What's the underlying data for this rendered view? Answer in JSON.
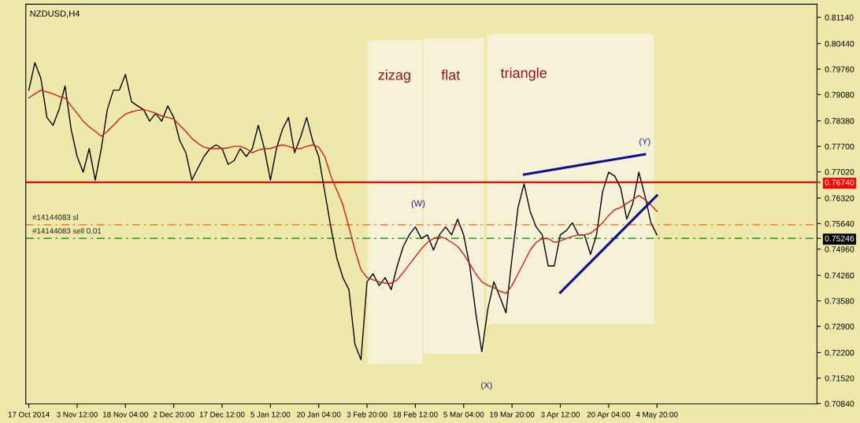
{
  "chart_data": {
    "type": "line",
    "title": "NZDUSD,H4",
    "categories": [
      "17 Oct 2014",
      null,
      null,
      null,
      null,
      null,
      null,
      null,
      "3 Nov 12:00",
      null,
      null,
      null,
      null,
      null,
      null,
      null,
      "18 Nov 04:00",
      null,
      null,
      null,
      null,
      null,
      null,
      null,
      "2 Dec 20:00",
      null,
      null,
      null,
      null,
      null,
      null,
      null,
      "17 Dec 12:00",
      null,
      null,
      null,
      null,
      null,
      null,
      null,
      "5 Jan 12:00",
      null,
      null,
      null,
      null,
      null,
      null,
      null,
      "20 Jan 04:00",
      null,
      null,
      null,
      null,
      null,
      null,
      null,
      "3 Feb 20:00",
      null,
      null,
      null,
      null,
      null,
      null,
      null,
      "18 Feb 12:00",
      null,
      null,
      null,
      null,
      null,
      null,
      null,
      "5 Mar 04:00",
      null,
      null,
      null,
      null,
      null,
      null,
      null,
      "19 Mar 20:00",
      null,
      null,
      null,
      null,
      null,
      null,
      null,
      "3 Apr 12:00",
      null,
      null,
      null,
      null,
      null,
      null,
      null,
      "20 Apr 04:00",
      null,
      null,
      null,
      null,
      null,
      null,
      null,
      "4 May 20:00",
      null,
      null,
      null,
      null,
      null,
      null,
      null,
      null,
      null,
      null,
      null,
      null,
      null,
      null,
      null,
      null,
      null,
      null,
      null,
      null,
      null,
      null,
      null,
      null,
      null,
      null
    ],
    "series": [
      {
        "color": "#000000",
        "values": [
          0.792,
          0.7993,
          0.7951,
          0.7847,
          0.7826,
          0.7868,
          0.7931,
          0.7816,
          0.7743,
          0.7701,
          0.7764,
          0.768,
          0.7764,
          0.7868,
          0.792,
          0.792,
          0.7962,
          0.7889,
          0.7878,
          0.7868,
          0.7837,
          0.7858,
          0.7837,
          0.7878,
          0.7847,
          0.7785,
          0.7753,
          0.768,
          0.7712,
          0.7743,
          0.7764,
          0.7774,
          0.7764,
          0.7722,
          0.7732,
          0.7764,
          0.7743,
          0.7764,
          0.7826,
          0.7764,
          0.768,
          0.7764,
          0.7816,
          0.7847,
          0.7753,
          0.7795,
          0.7847,
          0.7785,
          0.7743,
          0.7649,
          0.7555,
          0.7472,
          0.742,
          0.7388,
          0.7242,
          0.7201,
          0.7409,
          0.743,
          0.7399,
          0.742,
          0.7388,
          0.7451,
          0.7503,
          0.7534,
          0.7555,
          0.7524,
          0.7534,
          0.7493,
          0.7534,
          0.7555,
          0.7534,
          0.7576,
          0.7534,
          0.7451,
          0.7326,
          0.7222,
          0.7336,
          0.7409,
          0.7368,
          0.7326,
          0.7472,
          0.7607,
          0.767,
          0.7597,
          0.7555,
          0.7534,
          0.7451,
          0.7451,
          0.7534,
          0.7545,
          0.7566,
          0.7534,
          0.7534,
          0.7482,
          0.7534,
          0.7649,
          0.7701,
          0.7691,
          0.7659,
          0.7576,
          0.7618,
          0.7701,
          0.7639,
          0.7566,
          0.7534,
          null,
          null,
          null,
          null,
          null,
          null,
          null,
          null,
          null,
          null,
          null,
          null,
          null,
          null,
          null,
          null,
          null,
          null,
          null,
          null,
          null,
          null,
          null,
          null,
          null,
          null
        ]
      },
      {
        "color": "#cc2020",
        "values": [
          0.7899,
          0.791,
          0.792,
          0.7915,
          0.791,
          0.7903,
          0.7899,
          0.7878,
          0.7858,
          0.7837,
          0.7822,
          0.781,
          0.7797,
          0.781,
          0.7826,
          0.7843,
          0.7856,
          0.7862,
          0.7866,
          0.7868,
          0.7864,
          0.7858,
          0.7851,
          0.7847,
          0.7843,
          0.7826,
          0.781,
          0.7791,
          0.7778,
          0.7768,
          0.7764,
          0.7764,
          0.7764,
          0.7766,
          0.777,
          0.777,
          0.7764,
          0.7753,
          0.776,
          0.7764,
          0.7764,
          0.777,
          0.7774,
          0.777,
          0.7764,
          0.7764,
          0.777,
          0.7774,
          0.7768,
          0.7743,
          0.7691,
          0.7653,
          0.7614,
          0.7555,
          0.7493,
          0.7441,
          0.742,
          0.7414,
          0.7409,
          0.7405,
          0.7405,
          0.7414,
          0.7434,
          0.7455,
          0.7476,
          0.7497,
          0.7514,
          0.7524,
          0.753,
          0.7524,
          0.7514,
          0.7503,
          0.7482,
          0.7457,
          0.743,
          0.7409,
          0.7399,
          0.7393,
          0.7384,
          0.7378,
          0.7399,
          0.743,
          0.7461,
          0.7493,
          0.7514,
          0.7524,
          0.7524,
          0.7514,
          0.7518,
          0.7524,
          0.753,
          0.7534,
          0.7534,
          0.7538,
          0.7551,
          0.7566,
          0.7586,
          0.7601,
          0.7607,
          0.7618,
          0.7628,
          0.7639,
          0.7628,
          0.7614,
          0.7597,
          null,
          null,
          null,
          null,
          null,
          null,
          null,
          null,
          null,
          null,
          null,
          null,
          null,
          null,
          null,
          null,
          null,
          null,
          null,
          null,
          null,
          null,
          null,
          null,
          null,
          null
        ]
      },
      {
        "color": "#10108c",
        "values": [
          null,
          null,
          null,
          null,
          null,
          null,
          null,
          null,
          null,
          null,
          null,
          null,
          null,
          null,
          null,
          null,
          null,
          null,
          null,
          null,
          null,
          null,
          null,
          null,
          null,
          null,
          null,
          null,
          null,
          null,
          null,
          null,
          null,
          null,
          null,
          null,
          null,
          null,
          null,
          null,
          null,
          null,
          null,
          null,
          null,
          null,
          null,
          null,
          null,
          null,
          null,
          null,
          null,
          null,
          null,
          null,
          null,
          null,
          null,
          null,
          null,
          null,
          null,
          null,
          null,
          null,
          null,
          null,
          null,
          null,
          null,
          null,
          null,
          null,
          null,
          null,
          null,
          null,
          null,
          null,
          null,
          null,
          0.7695,
          null,
          null,
          null,
          null,
          null,
          null,
          null,
          null,
          null,
          null,
          null,
          null,
          null,
          null,
          null,
          null,
          null,
          null,
          null,
          0.7749,
          null,
          null,
          null,
          null,
          null,
          null,
          null,
          null,
          null,
          null,
          null,
          null,
          null,
          null,
          null,
          null,
          null,
          null,
          null,
          null,
          null,
          null,
          null,
          null,
          null,
          null,
          null,
          null
        ]
      },
      {
        "color": "#10108c",
        "values": [
          null,
          null,
          null,
          null,
          null,
          null,
          null,
          null,
          null,
          null,
          null,
          null,
          null,
          null,
          null,
          null,
          null,
          null,
          null,
          null,
          null,
          null,
          null,
          null,
          null,
          null,
          null,
          null,
          null,
          null,
          null,
          null,
          null,
          null,
          null,
          null,
          null,
          null,
          null,
          null,
          null,
          null,
          null,
          null,
          null,
          null,
          null,
          null,
          null,
          null,
          null,
          null,
          null,
          null,
          null,
          null,
          null,
          null,
          null,
          null,
          null,
          null,
          null,
          null,
          null,
          null,
          null,
          null,
          null,
          null,
          null,
          null,
          null,
          null,
          null,
          null,
          null,
          null,
          null,
          null,
          null,
          null,
          null,
          null,
          null,
          null,
          null,
          null,
          0.738,
          null,
          null,
          null,
          null,
          null,
          null,
          null,
          null,
          null,
          null,
          null,
          null,
          null,
          null,
          null,
          0.7639,
          null,
          null,
          null,
          null,
          null,
          null,
          null,
          null,
          null,
          null,
          null,
          null,
          null,
          null,
          null,
          null,
          null,
          null,
          null,
          null,
          null,
          null,
          null,
          null,
          null,
          null
        ]
      }
    ],
    "ylim": [
      0.7083,
      0.8149
    ],
    "yticks": [
      {
        "value": 0.8114,
        "label": "0.81140"
      },
      {
        "value": 0.8044,
        "label": "0.80440"
      },
      {
        "value": 0.7976,
        "label": "0.79760"
      },
      {
        "value": 0.7908,
        "label": "0.79080"
      },
      {
        "value": 0.7838,
        "label": "0.78380"
      },
      {
        "value": 0.777,
        "label": "0.77700"
      },
      {
        "value": 0.7702,
        "label": "0.77020"
      },
      {
        "value": 0.7674,
        "label": "0.76740"
      },
      {
        "value": 0.7632,
        "label": "0.76320"
      },
      {
        "value": 0.7564,
        "label": "0.75640"
      },
      {
        "value": 0.75246,
        "label": "0.75246"
      },
      {
        "value": 0.7496,
        "label": "0.74960"
      },
      {
        "value": 0.7426,
        "label": "0.74260"
      },
      {
        "value": 0.7358,
        "label": "0.73580"
      },
      {
        "value": 0.729,
        "label": "0.72900"
      },
      {
        "value": 0.722,
        "label": "0.72200"
      },
      {
        "value": 0.7152,
        "label": "0.71520"
      },
      {
        "value": 0.7084,
        "label": "0.70840"
      }
    ],
    "grid": false,
    "ref_lines": [
      {
        "axis": "y",
        "value": 0.7674,
        "color": "#ff0000",
        "line_style": "solid"
      },
      {
        "axis": "y",
        "value": 0.7561,
        "label": "#14144083 sl",
        "color": "#ff6000",
        "line_style": "dashed"
      },
      {
        "axis": "y",
        "value": 0.75246,
        "label": "#14144083 sell 0.01",
        "color": "#008000",
        "line_style": "dashed"
      }
    ],
    "annotations": [
      "zizag",
      "flat",
      "triangle",
      "(W)",
      "(X)",
      "(Y)"
    ]
  }
}
